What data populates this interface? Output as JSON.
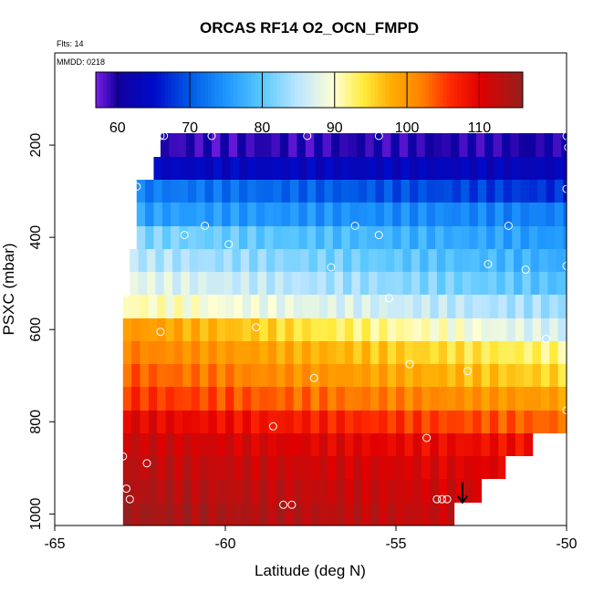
{
  "chart_data": {
    "type": "heatmap",
    "title": "ORCAS RF14 O2_OCN_FMPD",
    "annotations": {
      "flights": "Flts: 14",
      "date": "MMDD: 0218"
    },
    "xlabel": "Latitude (deg N)",
    "ylabel": "PSXC (mbar)",
    "xlim": [
      -65,
      -50
    ],
    "ylim": [
      1025,
      0
    ],
    "x_ticks": [
      {
        "value": -65,
        "label": "-65"
      },
      {
        "value": -60,
        "label": "-60"
      },
      {
        "value": -55,
        "label": "-55"
      },
      {
        "value": -50,
        "label": "-50"
      }
    ],
    "y_ticks": [
      {
        "value": 200,
        "label": "200"
      },
      {
        "value": 400,
        "label": "400"
      },
      {
        "value": 600,
        "label": "600"
      },
      {
        "value": 800,
        "label": "800"
      },
      {
        "value": 1000,
        "label": "1000"
      }
    ],
    "colorbar": {
      "range": [
        57,
        116
      ],
      "ticks": [
        {
          "value": 60,
          "label": "60"
        },
        {
          "value": 70,
          "label": "70"
        },
        {
          "value": 80,
          "label": "80"
        },
        {
          "value": 90,
          "label": "90"
        },
        {
          "value": 100,
          "label": "100"
        },
        {
          "value": 110,
          "label": "110"
        }
      ]
    },
    "cell_width_deg": 0.25,
    "rows": [
      {
        "p_top": 175,
        "p_bottom": 225,
        "x_start": -61.9,
        "x_end": -50,
        "v_west": 59,
        "v_east": 60
      },
      {
        "p_top": 225,
        "p_bottom": 275,
        "x_start": -62.1,
        "x_end": -50,
        "v_west": 64,
        "v_east": 63
      },
      {
        "p_top": 275,
        "p_bottom": 325,
        "x_start": -62.6,
        "x_end": -50,
        "v_west": 73,
        "v_east": 67
      },
      {
        "p_top": 325,
        "p_bottom": 375,
        "x_start": -62.6,
        "x_end": -50,
        "v_west": 76,
        "v_east": 73
      },
      {
        "p_top": 375,
        "p_bottom": 425,
        "x_start": -62.6,
        "x_end": -50,
        "v_west": 82,
        "v_east": 75
      },
      {
        "p_top": 425,
        "p_bottom": 475,
        "x_start": -62.8,
        "x_end": -50,
        "v_west": 85,
        "v_east": 77
      },
      {
        "p_top": 475,
        "p_bottom": 525,
        "x_start": -62.8,
        "x_end": -50,
        "v_west": 88,
        "v_east": 79
      },
      {
        "p_top": 525,
        "p_bottom": 575,
        "x_start": -63.0,
        "x_end": -50,
        "v_west": 91,
        "v_east": 83
      },
      {
        "p_top": 575,
        "p_bottom": 625,
        "x_start": -63.0,
        "x_end": -50,
        "v_west": 100,
        "v_east": 86
      },
      {
        "p_top": 625,
        "p_bottom": 675,
        "x_start": -63.0,
        "x_end": -50,
        "v_west": 102,
        "v_east": 92
      },
      {
        "p_top": 675,
        "p_bottom": 725,
        "x_start": -63.0,
        "x_end": -50,
        "v_west": 104,
        "v_east": 95
      },
      {
        "p_top": 725,
        "p_bottom": 775,
        "x_start": -63.0,
        "x_end": -50,
        "v_west": 106,
        "v_east": 99
      },
      {
        "p_top": 775,
        "p_bottom": 825,
        "x_start": -63.0,
        "x_end": -50,
        "v_west": 110,
        "v_east": 103
      },
      {
        "p_top": 825,
        "p_bottom": 875,
        "x_start": -63.0,
        "x_end": -51.0,
        "v_west": 112,
        "v_east": 108
      },
      {
        "p_top": 875,
        "p_bottom": 925,
        "x_start": -63.0,
        "x_end": -51.8,
        "v_west": 113,
        "v_east": 110
      },
      {
        "p_top": 925,
        "p_bottom": 975,
        "x_start": -63.0,
        "x_end": -52.5,
        "v_west": 114,
        "v_east": 111
      },
      {
        "p_top": 975,
        "p_bottom": 1025,
        "x_start": -63.0,
        "x_end": -53.3,
        "v_west": 115,
        "v_east": 112
      }
    ],
    "flight_points": [
      {
        "lat": -61.9,
        "p": 180
      },
      {
        "lat": -61.8,
        "p": 180
      },
      {
        "lat": -60.4,
        "p": 180
      },
      {
        "lat": -57.6,
        "p": 180
      },
      {
        "lat": -55.5,
        "p": 180
      },
      {
        "lat": -50,
        "p": 180
      },
      {
        "lat": -49.95,
        "p": 205
      },
      {
        "lat": -62.6,
        "p": 290
      },
      {
        "lat": -50,
        "p": 295
      },
      {
        "lat": -60.6,
        "p": 375
      },
      {
        "lat": -56.2,
        "p": 375
      },
      {
        "lat": -51.7,
        "p": 375
      },
      {
        "lat": -61.2,
        "p": 395
      },
      {
        "lat": -55.5,
        "p": 395
      },
      {
        "lat": -59.9,
        "p": 415
      },
      {
        "lat": -52.3,
        "p": 458
      },
      {
        "lat": -50,
        "p": 462
      },
      {
        "lat": -56.9,
        "p": 465
      },
      {
        "lat": -51.2,
        "p": 470
      },
      {
        "lat": -62.9,
        "p": 520
      },
      {
        "lat": -55.2,
        "p": 532
      },
      {
        "lat": -59.1,
        "p": 595
      },
      {
        "lat": -61.9,
        "p": 605
      },
      {
        "lat": -50.6,
        "p": 620
      },
      {
        "lat": -54.6,
        "p": 675
      },
      {
        "lat": -52.9,
        "p": 690
      },
      {
        "lat": -57.4,
        "p": 705
      },
      {
        "lat": -50,
        "p": 775
      },
      {
        "lat": -58.6,
        "p": 810
      },
      {
        "lat": -54.1,
        "p": 835
      },
      {
        "lat": -63.0,
        "p": 875
      },
      {
        "lat": -62.3,
        "p": 890
      },
      {
        "lat": -62.9,
        "p": 945
      },
      {
        "lat": -62.8,
        "p": 968
      },
      {
        "lat": -53.8,
        "p": 968
      },
      {
        "lat": -53.65,
        "p": 968
      },
      {
        "lat": -53.5,
        "p": 968
      },
      {
        "lat": -58.3,
        "p": 980
      },
      {
        "lat": -58.05,
        "p": 980
      }
    ],
    "marker": {
      "lat": -53.05,
      "p": 975,
      "direction": "down"
    }
  }
}
